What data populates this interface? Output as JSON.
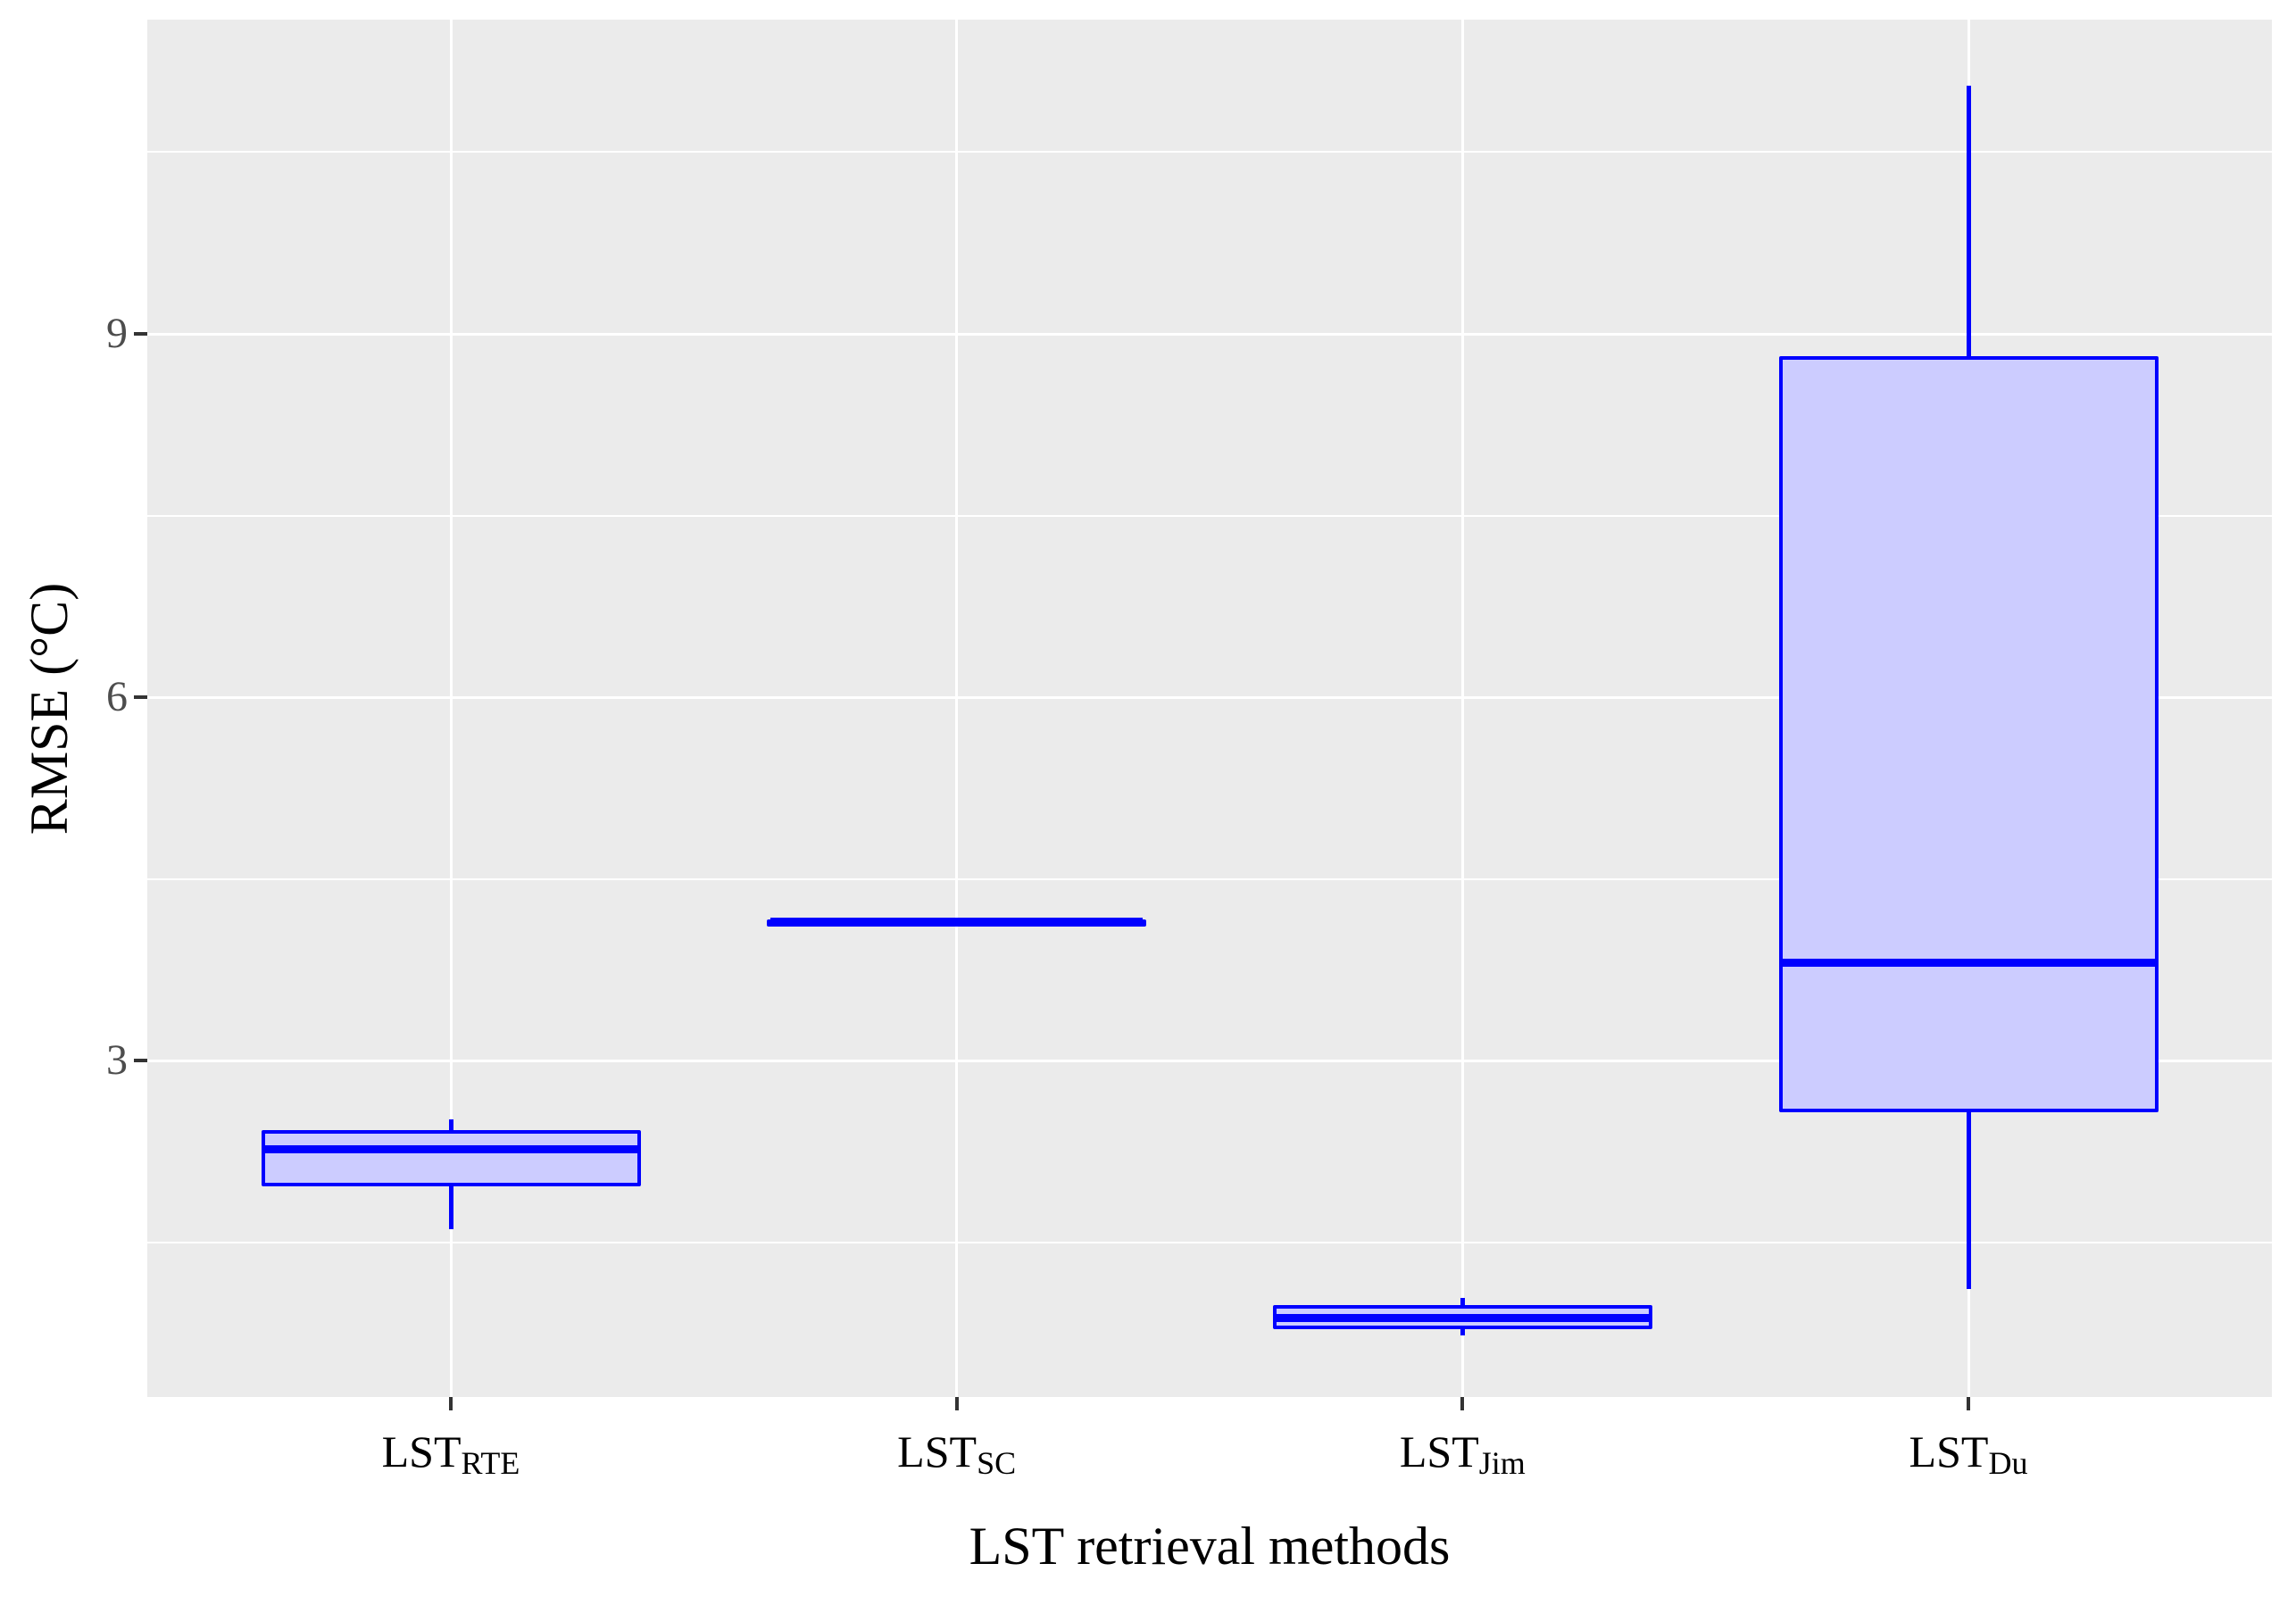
{
  "chart_data": {
    "type": "boxplot",
    "title": "",
    "xlabel": "LST retrieval methods",
    "ylabel": "RMSE (°C)",
    "ylim": [
      0.225,
      11.594
    ],
    "y_ticks": [
      3,
      6,
      9
    ],
    "y_minor_ticks": [
      1.5,
      4.5,
      7.5,
      10.5
    ],
    "grid": true,
    "legend": false,
    "categories": [
      "LST_RTE",
      "LST_SC",
      "LST_Jim",
      "LST_Du"
    ],
    "boxes": [
      {
        "label_base": "LST",
        "label_sub": "RTE",
        "min": 1.61,
        "q1": 1.98,
        "median": 2.27,
        "q3": 2.41,
        "max": 2.52
      },
      {
        "label_base": "LST",
        "label_sub": "SC",
        "min": 4.15,
        "q1": 4.15,
        "median": 4.15,
        "q3": 4.15,
        "max": 4.15
      },
      {
        "label_base": "LST",
        "label_sub": "Jim",
        "min": 0.73,
        "q1": 0.8,
        "median": 0.88,
        "q3": 0.97,
        "max": 1.04
      },
      {
        "label_base": "LST",
        "label_sub": "Du",
        "min": 1.12,
        "q1": 2.59,
        "median": 3.81,
        "q3": 8.8,
        "max": 11.05
      }
    ],
    "colors": {
      "box_stroke": "#0000FF",
      "box_fill": "#CCCCFF",
      "panel_bg": "#EBEBEB",
      "grid": "#FFFFFF",
      "tick_text": "#4D4D4D",
      "tick_mark": "#333333",
      "axis_title": "#000000"
    }
  }
}
